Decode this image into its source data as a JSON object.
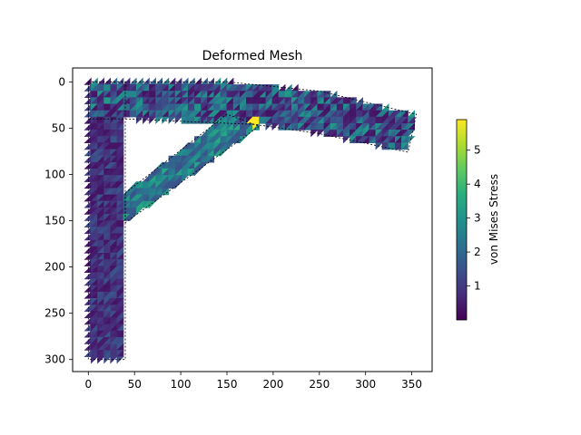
{
  "chart_data": {
    "type": "heatmap",
    "title": "Deformed Mesh",
    "xlabel": "",
    "ylabel": "",
    "xlim": [
      -17,
      372
    ],
    "ylim": [
      313,
      -15
    ],
    "y_inverted": true,
    "xticks": [
      0,
      50,
      100,
      150,
      200,
      250,
      300,
      350
    ],
    "yticks": [
      0,
      50,
      100,
      150,
      200,
      250,
      300
    ],
    "colormap": "viridis",
    "colorbar": {
      "label": "von Mises Stress",
      "range": [
        0.0,
        5.9
      ],
      "ticks": [
        1,
        2,
        3,
        4,
        5
      ]
    },
    "regions": [
      {
        "name": "vertical column",
        "polygon": [
          [
            0,
            0
          ],
          [
            40,
            0
          ],
          [
            40,
            300
          ],
          [
            0,
            300
          ]
        ],
        "stress": [
          0.3,
          1.6
        ]
      },
      {
        "name": "top beam",
        "polygon": [
          [
            0,
            0
          ],
          [
            150,
            0
          ],
          [
            250,
            10
          ],
          [
            355,
            35
          ],
          [
            346,
            76
          ],
          [
            250,
            56
          ],
          [
            180,
            46
          ],
          [
            40,
            40
          ],
          [
            0,
            40
          ]
        ],
        "stress": [
          0.3,
          3.2
        ]
      },
      {
        "name": "diagonal brace",
        "polygon": [
          [
            40,
            120
          ],
          [
            150,
            35
          ],
          [
            185,
            48
          ],
          [
            40,
            152
          ]
        ],
        "stress": [
          1.5,
          3.6
        ]
      }
    ],
    "hotspot": {
      "x": 180,
      "y": 42,
      "stress": 5.9
    }
  }
}
